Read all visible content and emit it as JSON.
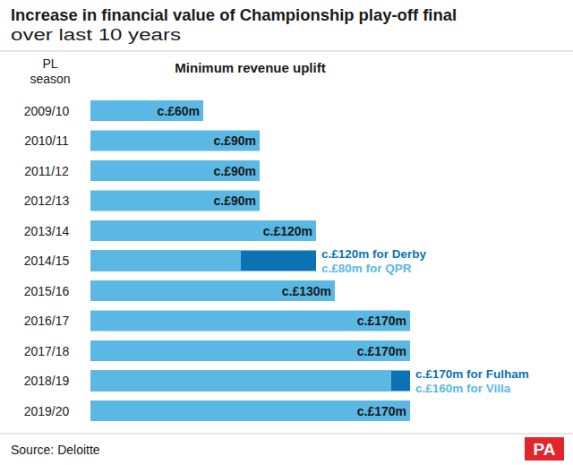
{
  "chart_data": {
    "type": "bar",
    "orientation": "horizontal",
    "title": "Increase in financial value of Championship play-off final",
    "subtitle": "over last 10 years",
    "ylabel": "PL season",
    "xlabel": "Minimum revenue uplift",
    "source": "Source: Deloitte",
    "logo": "PA",
    "categories": [
      "2009/10",
      "2010/11",
      "2011/12",
      "2012/13",
      "2013/14",
      "2014/15",
      "2015/16",
      "2016/17",
      "2017/18",
      "2018/19",
      "2019/20"
    ],
    "xlim": [
      0,
      170
    ],
    "tick_labels": "y",
    "grid": false,
    "data_labels": true,
    "series": [
      {
        "color": "#0b72b3",
        "values": [
          null,
          null,
          null,
          null,
          null,
          120,
          null,
          null,
          null,
          170,
          null
        ],
        "value_labels": [
          null,
          null,
          null,
          null,
          null,
          "c.£120m for Derby",
          null,
          null,
          null,
          "c.£170m for Fulham",
          null
        ]
      },
      {
        "color": "#5bb8e5",
        "values": [
          60,
          90,
          90,
          90,
          120,
          80,
          130,
          170,
          170,
          160,
          170
        ],
        "value_labels": [
          "c.£60m",
          "c.£90m",
          "c.£90m",
          "c.£90m",
          "c.£120m",
          "c.£80m for QPR",
          "c.£130m",
          "c.£170m",
          "c.£170m",
          "c.£160m for Villa",
          "c.£170m"
        ]
      }
    ]
  }
}
